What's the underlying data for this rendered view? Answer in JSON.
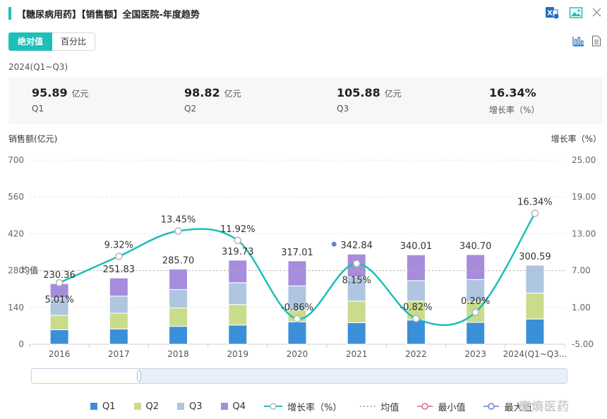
{
  "header": {
    "title": "【糖尿病用药】【销售额】全国医院-年度趋势"
  },
  "toggle": {
    "absolute_label": "绝对值",
    "percent_label": "百分比"
  },
  "period": "2024(Q1~Q3)",
  "summary": [
    {
      "value": "95.89",
      "unit": "亿元",
      "label": "Q1"
    },
    {
      "value": "98.82",
      "unit": "亿元",
      "label": "Q2"
    },
    {
      "value": "105.88",
      "unit": "亿元",
      "label": "Q3"
    },
    {
      "value": "16.34%",
      "unit": "",
      "label": "增长率（%）"
    }
  ],
  "axis_titles": {
    "left": "销售额(亿元)",
    "right": "增长率（%）"
  },
  "legend": {
    "q1": "Q1",
    "q2": "Q2",
    "q3": "Q3",
    "q4": "Q4",
    "growth": "增长率（%）",
    "avg": "均值",
    "min": "最小值",
    "max": "最大值"
  },
  "watermark": "摩熵医药",
  "colors": {
    "accent": "#1dbfb8",
    "q1": "#3b8fd9",
    "q2": "#c9dc8c",
    "q3": "#aec6e0",
    "q4": "#a78cdd",
    "growth_line": "#1dbfb8",
    "min_marker": "#e06a8c",
    "max_marker": "#6b7fd6"
  },
  "chart_data": {
    "type": "bar",
    "stacked": true,
    "categories": [
      "2016",
      "2017",
      "2018",
      "2019",
      "2020",
      "2021",
      "2022",
      "2023",
      "2024(Q1~Q3..."
    ],
    "series": [
      {
        "name": "Q1",
        "values": [
          55,
          58,
          68,
          73,
          85,
          82,
          92,
          83,
          95.89
        ]
      },
      {
        "name": "Q2",
        "values": [
          55,
          60,
          70,
          78,
          45,
          82,
          72,
          78,
          98.82
        ]
      },
      {
        "name": "Q3",
        "values": [
          65,
          65,
          70,
          83,
          92,
          92,
          78,
          85,
          105.88
        ]
      },
      {
        "name": "Q4",
        "values": [
          55.36,
          68.83,
          77.7,
          85.73,
          95.01,
          86.84,
          98.01,
          94.7,
          0
        ]
      }
    ],
    "totals": [
      230.36,
      251.83,
      285.7,
      319.73,
      317.01,
      342.84,
      340.01,
      340.7,
      300.59
    ],
    "total_labels": [
      "230.36",
      "251.83",
      "285.70",
      "319.73",
      "317.01",
      "342.84",
      "340.01",
      "340.70",
      "300.59"
    ],
    "growth_series": {
      "name": "增长率（%）",
      "values": [
        5.01,
        9.32,
        13.45,
        11.92,
        -0.86,
        8.15,
        -0.82,
        0.2,
        16.34
      ],
      "labels": [
        "5.01%",
        "9.32%",
        "13.45%",
        "11.92%",
        "-0.86%",
        "8.15%",
        "-0.82%",
        "0.20%",
        "16.34%"
      ]
    },
    "average_label": "均值",
    "average_value": 280,
    "ylim_left": [
      0,
      700
    ],
    "ylim_right": [
      -5,
      25
    ],
    "yticks_left": [
      "0",
      "140",
      "280",
      "420",
      "560",
      "700"
    ],
    "yticks_right": [
      "-5.00",
      "1.00",
      "7.00",
      "13.00",
      "19.00",
      "25.00"
    ],
    "grid": true,
    "legend_position": "bottom"
  }
}
